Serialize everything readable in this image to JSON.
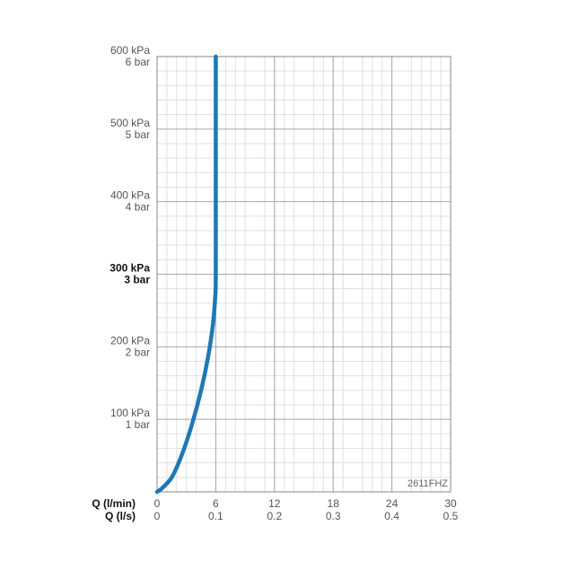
{
  "chart_data": {
    "type": "line",
    "title": "",
    "model_code": "2611FHZ",
    "x_axis": {
      "label_primary": "Q (l/min)",
      "label_secondary": "Q (l/s)",
      "range": [
        0,
        30
      ],
      "ticks_primary": [
        "0",
        "6",
        "12",
        "18",
        "24",
        "30"
      ],
      "ticks_secondary": [
        "0",
        "0.1",
        "0.2",
        "0.3",
        "0.4",
        "0.5"
      ],
      "tick_values": [
        0,
        6,
        12,
        18,
        24,
        30
      ]
    },
    "y_axis": {
      "range": [
        0,
        600
      ],
      "unit": "kPa",
      "ticks": [
        {
          "value": 100,
          "kpa": "100 kPa",
          "bar": "1 bar",
          "bold": false
        },
        {
          "value": 200,
          "kpa": "200 kPa",
          "bar": "2 bar",
          "bold": false
        },
        {
          "value": 300,
          "kpa": "300 kPa",
          "bar": "3 bar",
          "bold": true
        },
        {
          "value": 400,
          "kpa": "400 kPa",
          "bar": "4 bar",
          "bold": false
        },
        {
          "value": 500,
          "kpa": "500 kPa",
          "bar": "5 bar",
          "bold": false
        },
        {
          "value": 600,
          "kpa": "600 kPa",
          "bar": "6 bar",
          "bold": false
        }
      ]
    },
    "grid": true,
    "series": [
      {
        "color": "#1f78b4",
        "x": [
          0,
          0.5,
          1.5,
          2.5,
          3.5,
          4.5,
          5.2,
          5.7,
          5.95,
          6.0,
          6.0,
          6.0,
          6.0
        ],
        "y": [
          0,
          5,
          20,
          50,
          90,
          140,
          185,
          230,
          270,
          300,
          400,
          500,
          600
        ]
      }
    ]
  }
}
